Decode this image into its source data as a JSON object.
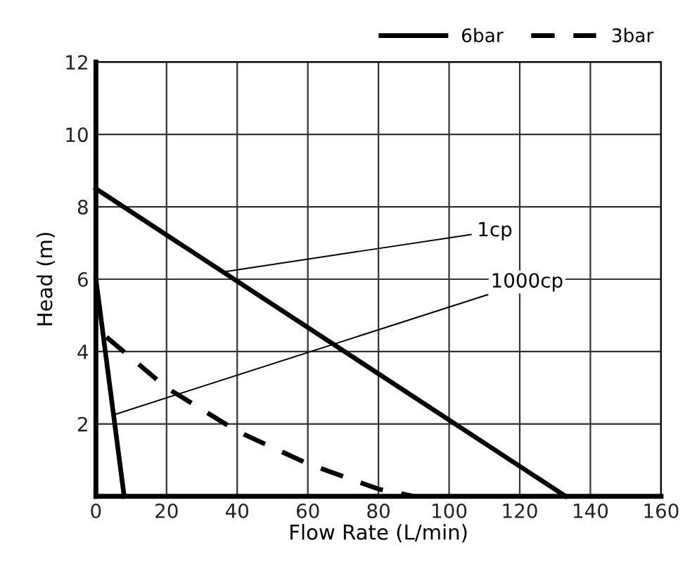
{
  "chart_data": {
    "type": "line",
    "xlabel": "Flow Rate (L/min)",
    "ylabel": "Head (m)",
    "xlim": [
      0,
      160
    ],
    "xticks": [
      0,
      20,
      40,
      60,
      80,
      100,
      120,
      140,
      160
    ],
    "ylim": [
      0,
      12
    ],
    "yticks": [
      {
        "value": 0,
        "label": null
      },
      2,
      4,
      6,
      8,
      10,
      12
    ],
    "grid": true,
    "legend": "top right",
    "marker": "none",
    "series": [
      {
        "name": "6bar",
        "color": "#000000",
        "line_style": "solid",
        "x": [
          0,
          133
        ],
        "values": [
          8.5,
          0
        ]
      },
      {
        "color": "#000000",
        "line_style": "solid",
        "x": [
          0,
          8
        ],
        "values": [
          6,
          0
        ]
      },
      {
        "name": "3bar",
        "color": "#000000",
        "line_style": "dashed",
        "x": [
          3,
          20,
          40,
          60,
          80,
          90
        ],
        "values": [
          4.4,
          3.0,
          1.8,
          0.9,
          0.2,
          0
        ]
      }
    ],
    "annotations": [
      {
        "text": "1cp",
        "x": 36,
        "y": 6.2
      },
      {
        "text": "1000cp",
        "x": 5,
        "y": 2.25
      }
    ]
  }
}
